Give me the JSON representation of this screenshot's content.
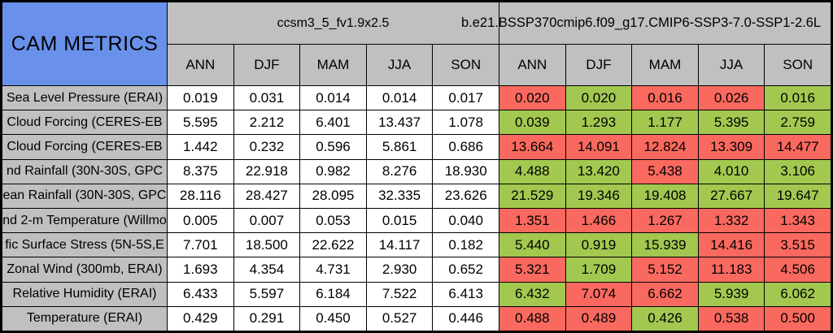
{
  "colors": {
    "red": "#FA695F",
    "green": "#A3C850",
    "blue": "#6991EB",
    "gray": "#C0C0C0",
    "cell_white": "#FFFFFF",
    "grid_line": "#000000"
  },
  "chart_data": {
    "type": "table",
    "title": "CAM METRICS",
    "groups": [
      {
        "model": "ccsm3_5_fv1.9x2.5",
        "seasons": [
          "ANN",
          "DJF",
          "MAM",
          "JJA",
          "SON"
        ]
      },
      {
        "model": "b.e21.BSSP370cmip6.f09_g17.CMIP6-SSP3-7.0-SSP1-2.6L",
        "seasons": [
          "ANN",
          "DJF",
          "MAM",
          "JJA",
          "SON"
        ]
      }
    ],
    "rows": [
      {
        "label": "Sea Level Pressure (ERAI)",
        "g1": [
          "0.019",
          "0.031",
          "0.014",
          "0.014",
          "0.017"
        ],
        "g2": [
          "0.020",
          "0.020",
          "0.016",
          "0.026",
          "0.016"
        ],
        "g2_colors": [
          "red",
          "green",
          "red",
          "red",
          "green"
        ]
      },
      {
        "label": "Cloud Forcing (CERES-EB",
        "g1": [
          "5.595",
          "2.212",
          "6.401",
          "13.437",
          "1.078"
        ],
        "g2": [
          "0.039",
          "1.293",
          "1.177",
          "5.395",
          "2.759"
        ],
        "g2_colors": [
          "green",
          "green",
          "green",
          "green",
          "green"
        ]
      },
      {
        "label": "Cloud Forcing (CERES-EB",
        "g1": [
          "1.442",
          "0.232",
          "0.596",
          "5.861",
          "0.686"
        ],
        "g2": [
          "13.664",
          "14.091",
          "12.824",
          "13.309",
          "14.477"
        ],
        "g2_colors": [
          "red",
          "red",
          "red",
          "red",
          "red"
        ]
      },
      {
        "label": "nd Rainfall (30N-30S, GPC",
        "g1": [
          "8.375",
          "22.918",
          "0.982",
          "8.276",
          "18.930"
        ],
        "g2": [
          "4.488",
          "13.420",
          "5.438",
          "4.010",
          "3.106"
        ],
        "g2_colors": [
          "green",
          "green",
          "red",
          "green",
          "green"
        ]
      },
      {
        "label": "ean Rainfall (30N-30S, GPC",
        "g1": [
          "28.116",
          "28.427",
          "28.095",
          "32.335",
          "23.626"
        ],
        "g2": [
          "21.529",
          "19.346",
          "19.408",
          "27.667",
          "19.647"
        ],
        "g2_colors": [
          "green",
          "green",
          "green",
          "green",
          "green"
        ]
      },
      {
        "label": "nd 2-m Temperature (Willmo",
        "g1": [
          "0.005",
          "0.007",
          "0.053",
          "0.015",
          "0.040"
        ],
        "g2": [
          "1.351",
          "1.466",
          "1.267",
          "1.332",
          "1.343"
        ],
        "g2_colors": [
          "red",
          "red",
          "red",
          "red",
          "red"
        ]
      },
      {
        "label": "fic Surface Stress (5N-5S,E",
        "g1": [
          "7.701",
          "18.500",
          "22.622",
          "14.117",
          "0.182"
        ],
        "g2": [
          "5.440",
          "0.919",
          "15.939",
          "14.416",
          "3.515"
        ],
        "g2_colors": [
          "green",
          "green",
          "green",
          "red",
          "red"
        ]
      },
      {
        "label": "Zonal Wind (300mb, ERAI)",
        "g1": [
          "1.693",
          "4.354",
          "4.731",
          "2.930",
          "0.652"
        ],
        "g2": [
          "5.321",
          "1.709",
          "5.152",
          "11.183",
          "4.506"
        ],
        "g2_colors": [
          "red",
          "green",
          "red",
          "red",
          "red"
        ]
      },
      {
        "label": "Relative Humidity (ERAI)",
        "g1": [
          "6.433",
          "5.597",
          "6.184",
          "7.522",
          "6.413"
        ],
        "g2": [
          "6.432",
          "7.074",
          "6.662",
          "5.939",
          "6.062"
        ],
        "g2_colors": [
          "green",
          "red",
          "red",
          "green",
          "green"
        ]
      },
      {
        "label": "Temperature (ERAI)",
        "g1": [
          "0.429",
          "0.291",
          "0.450",
          "0.527",
          "0.446"
        ],
        "g2": [
          "0.488",
          "0.489",
          "0.426",
          "0.538",
          "0.500"
        ],
        "g2_colors": [
          "red",
          "red",
          "green",
          "red",
          "red"
        ]
      }
    ]
  }
}
